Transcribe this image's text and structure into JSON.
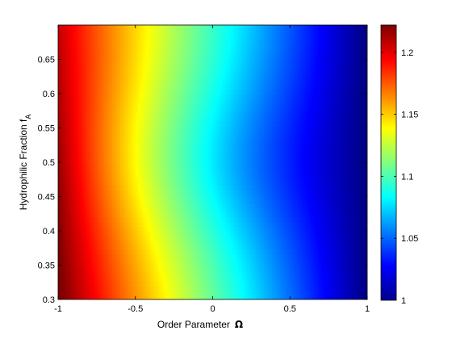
{
  "chart_data": {
    "type": "heatmap",
    "x_field": "Order Parameter Ω",
    "y_field": "Hydrophilic Fraction f_A",
    "xlabel_main": "Order Parameter",
    "xlabel_symbol": "Ω",
    "ylabel_main": "Hydrophilic Fraction  f",
    "ylabel_sub": "A",
    "xlim": [
      -1,
      1
    ],
    "ylim": [
      0.3,
      0.7
    ],
    "x_ticks": [
      -1,
      -0.5,
      0,
      0.5,
      1
    ],
    "x_tick_labels": [
      "-1",
      "-0.5",
      "0",
      "0.5",
      "1"
    ],
    "y_ticks": [
      0.3,
      0.35,
      0.4,
      0.45,
      0.5,
      0.55,
      0.6,
      0.65
    ],
    "y_tick_labels": [
      "0.3",
      "0.35",
      "0.4",
      "0.45",
      "0.5",
      "0.55",
      "0.6",
      "0.65"
    ],
    "colorbar": {
      "range": [
        1.0,
        1.222
      ],
      "ticks": [
        1.05,
        1.1,
        1.15,
        1.2
      ],
      "tick_labels": [
        "1.05",
        "1.1",
        "1.15",
        "1.2"
      ],
      "top_label": "",
      "bottom_label": "1",
      "colormap": "jet"
    },
    "value_description": "Value decreases monotonically with Ω from ~1.22 at Ω=-1 to ~1.0 at Ω=1; contours bow toward smaller Ω near f_A≈0.5",
    "samples": [
      {
        "omega": -1.0,
        "fA": 0.3,
        "value": 1.222
      },
      {
        "omega": -1.0,
        "fA": 0.65,
        "value": 1.2
      },
      {
        "omega": -0.5,
        "fA": 0.5,
        "value": 1.14
      },
      {
        "omega": 0.0,
        "fA": 0.5,
        "value": 1.09
      },
      {
        "omega": 0.5,
        "fA": 0.5,
        "value": 1.04
      },
      {
        "omega": 1.0,
        "fA": 0.5,
        "value": 1.0
      }
    ]
  }
}
